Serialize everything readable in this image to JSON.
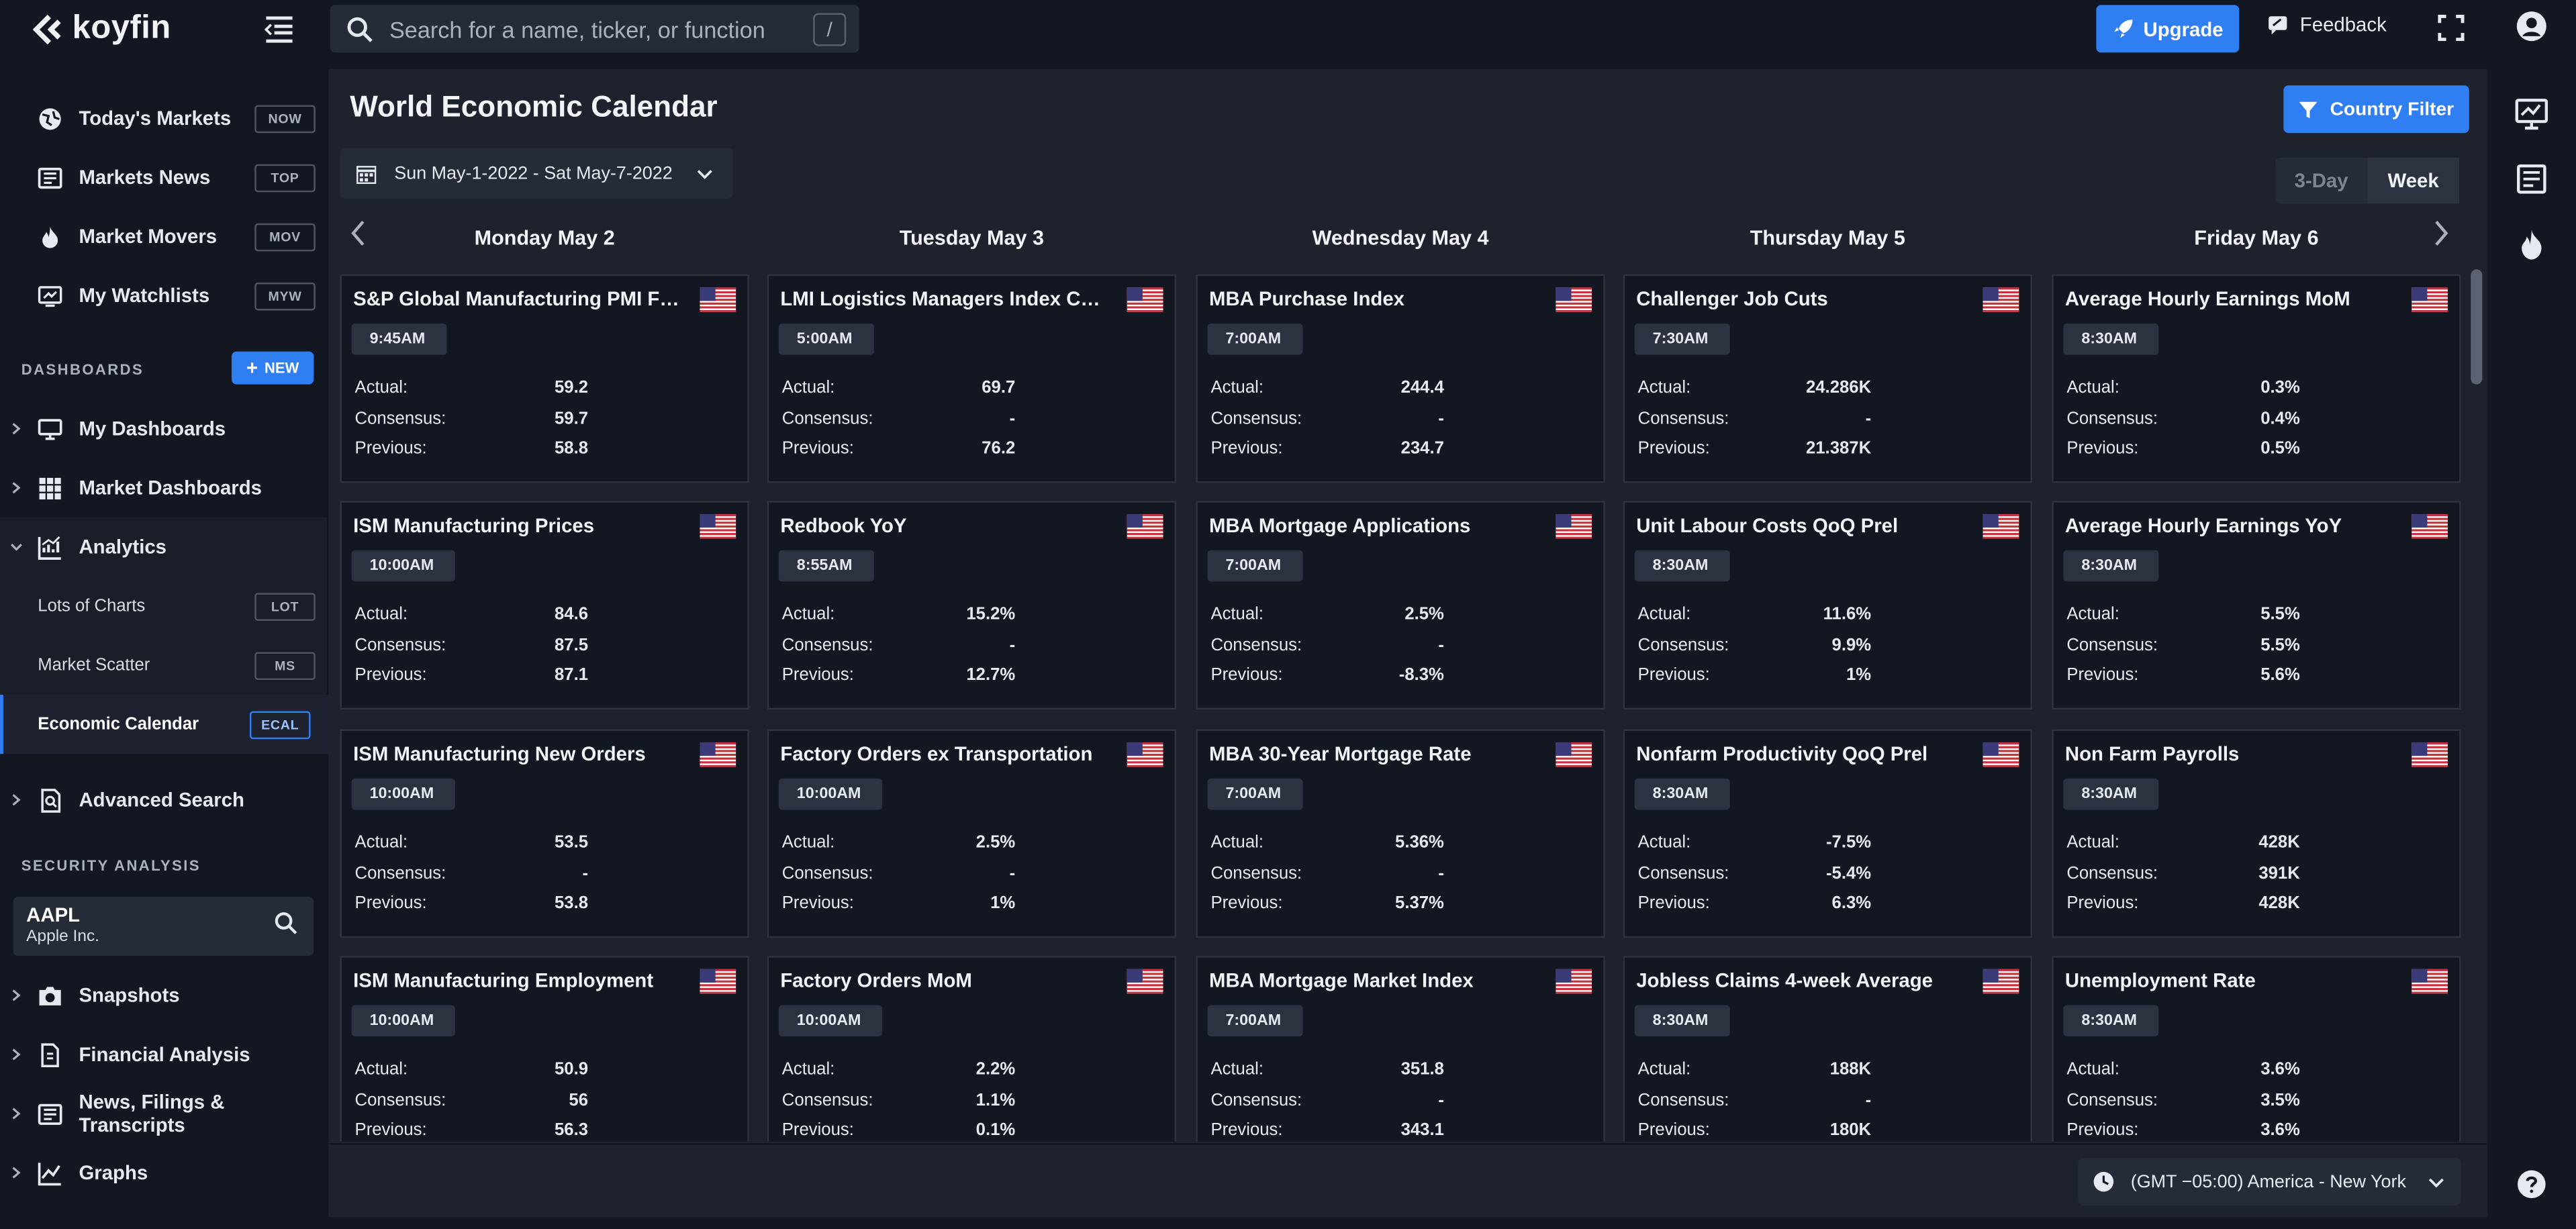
{
  "app": {
    "name": "koyfin"
  },
  "header": {
    "search_placeholder": "Search for a name, ticker, or function",
    "search_shortcut": "/",
    "upgrade_label": "Upgrade",
    "feedback_label": "Feedback"
  },
  "sidebar": {
    "top_items": [
      {
        "label": "Today's Markets",
        "shortcut": "NOW",
        "icon": "globe-icon"
      },
      {
        "label": "Markets News",
        "shortcut": "TOP",
        "icon": "newspaper-icon"
      },
      {
        "label": "Market Movers",
        "shortcut": "MOV",
        "icon": "flame-icon"
      },
      {
        "label": "My Watchlists",
        "shortcut": "MYW",
        "icon": "watchlist-icon"
      }
    ],
    "dashboards_title": "DASHBOARDS",
    "new_label": "NEW",
    "dashboard_items": [
      {
        "label": "My Dashboards",
        "icon": "monitor-icon"
      },
      {
        "label": "Market Dashboards",
        "icon": "grid-icon"
      },
      {
        "label": "Analytics",
        "icon": "analytics-icon"
      }
    ],
    "analytics_sub": [
      {
        "label": "Lots of Charts",
        "shortcut": "LOT"
      },
      {
        "label": "Market Scatter",
        "shortcut": "MS"
      },
      {
        "label": "Economic Calendar",
        "shortcut": "ECAL"
      }
    ],
    "advanced_search": "Advanced Search",
    "security_title": "SECURITY ANALYSIS",
    "ticker": {
      "symbol": "AAPL",
      "name": "Apple Inc."
    },
    "security_items": [
      {
        "label": "Snapshots",
        "icon": "camera-icon"
      },
      {
        "label": "Financial Analysis",
        "icon": "document-icon"
      },
      {
        "label": "News, Filings & Transcripts",
        "icon": "newspaper-icon"
      },
      {
        "label": "Graphs",
        "icon": "line-chart-icon"
      }
    ]
  },
  "main": {
    "title": "World Economic Calendar",
    "country_filter_label": "Country Filter",
    "date_range": "Sun May-1-2022 - Sat May-7-2022",
    "view_options": [
      "3-Day",
      "Week"
    ],
    "selected_view": "Week",
    "timezone": "(GMT −05:00) America - New York",
    "labels": {
      "actual": "Actual:",
      "consensus": "Consensus:",
      "previous": "Previous:"
    },
    "days": [
      {
        "header": "Monday May 2",
        "events": [
          {
            "title": "S&P Global Manufacturing PMI Final",
            "time": "9:45AM",
            "actual": "59.2",
            "consensus": "59.7",
            "previous": "58.8"
          },
          {
            "title": "ISM Manufacturing Prices",
            "time": "10:00AM",
            "actual": "84.6",
            "consensus": "87.5",
            "previous": "87.1"
          },
          {
            "title": "ISM Manufacturing New Orders",
            "time": "10:00AM",
            "actual": "53.5",
            "consensus": "-",
            "previous": "53.8"
          },
          {
            "title": "ISM Manufacturing Employment",
            "time": "10:00AM",
            "actual": "50.9",
            "consensus": "56",
            "previous": "56.3"
          }
        ]
      },
      {
        "header": "Tuesday May 3",
        "events": [
          {
            "title": "LMI Logistics Managers Index Curr...",
            "time": "5:00AM",
            "actual": "69.7",
            "consensus": "-",
            "previous": "76.2"
          },
          {
            "title": "Redbook YoY",
            "time": "8:55AM",
            "actual": "15.2%",
            "consensus": "-",
            "previous": "12.7%"
          },
          {
            "title": "Factory Orders ex Transportation",
            "time": "10:00AM",
            "actual": "2.5%",
            "consensus": "-",
            "previous": "1%"
          },
          {
            "title": "Factory Orders MoM",
            "time": "10:00AM",
            "actual": "2.2%",
            "consensus": "1.1%",
            "previous": "0.1%"
          }
        ]
      },
      {
        "header": "Wednesday May 4",
        "events": [
          {
            "title": "MBA Purchase Index",
            "time": "7:00AM",
            "actual": "244.4",
            "consensus": "-",
            "previous": "234.7"
          },
          {
            "title": "MBA Mortgage Applications",
            "time": "7:00AM",
            "actual": "2.5%",
            "consensus": "-",
            "previous": "-8.3%"
          },
          {
            "title": "MBA 30-Year Mortgage Rate",
            "time": "7:00AM",
            "actual": "5.36%",
            "consensus": "-",
            "previous": "5.37%"
          },
          {
            "title": "MBA Mortgage Market Index",
            "time": "7:00AM",
            "actual": "351.8",
            "consensus": "-",
            "previous": "343.1"
          }
        ]
      },
      {
        "header": "Thursday May 5",
        "events": [
          {
            "title": "Challenger Job Cuts",
            "time": "7:30AM",
            "actual": "24.286K",
            "consensus": "-",
            "previous": "21.387K"
          },
          {
            "title": "Unit Labour Costs QoQ Prel",
            "time": "8:30AM",
            "actual": "11.6%",
            "consensus": "9.9%",
            "previous": "1%"
          },
          {
            "title": "Nonfarm Productivity QoQ Prel",
            "time": "8:30AM",
            "actual": "-7.5%",
            "consensus": "-5.4%",
            "previous": "6.3%"
          },
          {
            "title": "Jobless Claims 4-week Average",
            "time": "8:30AM",
            "actual": "188K",
            "consensus": "-",
            "previous": "180K"
          }
        ]
      },
      {
        "header": "Friday May 6",
        "events": [
          {
            "title": "Average Hourly Earnings MoM",
            "time": "8:30AM",
            "actual": "0.3%",
            "consensus": "0.4%",
            "previous": "0.5%"
          },
          {
            "title": "Average Hourly Earnings YoY",
            "time": "8:30AM",
            "actual": "5.5%",
            "consensus": "5.5%",
            "previous": "5.6%"
          },
          {
            "title": "Non Farm Payrolls",
            "time": "8:30AM",
            "actual": "428K",
            "consensus": "391K",
            "previous": "428K"
          },
          {
            "title": "Unemployment Rate",
            "time": "8:30AM",
            "actual": "3.6%",
            "consensus": "3.5%",
            "previous": "3.6%"
          }
        ]
      }
    ]
  },
  "colors": {
    "accent": "#2f7ef2",
    "background": "#131722",
    "panel": "#1e222d"
  }
}
